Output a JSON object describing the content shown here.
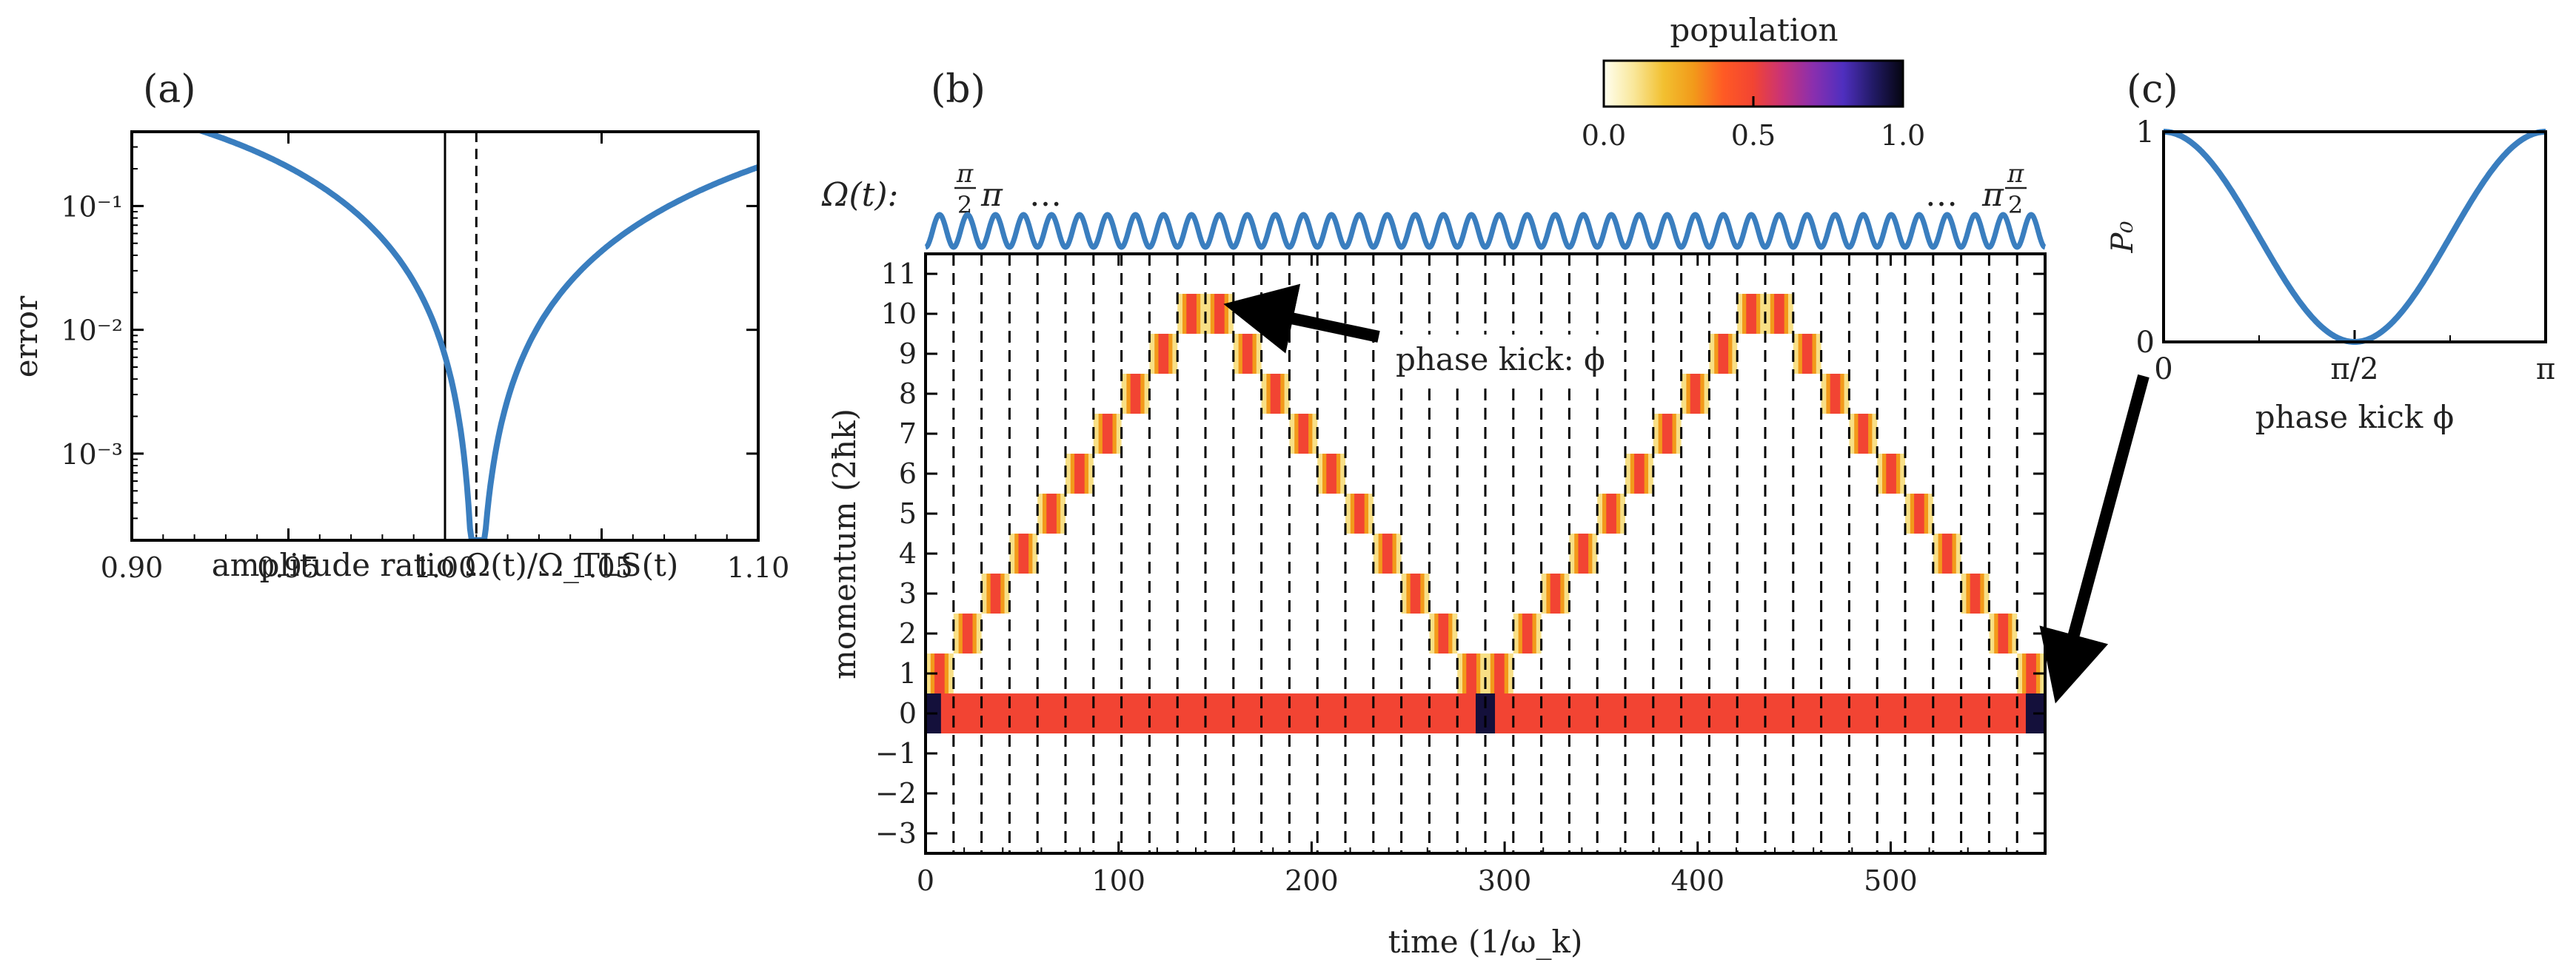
{
  "colors": {
    "curve": "#3a7ebf",
    "axis": "#000000",
    "cmap": [
      "#fffff0",
      "#f9e79a",
      "#f2c030",
      "#f29a1a",
      "#ff5a24",
      "#f24433",
      "#c7327a",
      "#8a2fae",
      "#4f2fbf",
      "#221a66",
      "#050510"
    ]
  },
  "panel_a": {
    "label": "(a)",
    "chart_data": {
      "type": "line",
      "xlabel": "amplitude ratio Ω(t)/Ω_TLS(t)",
      "ylabel": "error",
      "xlim": [
        0.9,
        1.1
      ],
      "ylim_log10": [
        -3.7,
        -0.4
      ],
      "xticks": [
        0.9,
        0.95,
        1.0,
        1.05,
        1.1
      ],
      "xtick_labels": [
        "0.90",
        "0.95",
        "1.00",
        "1.05",
        "1.10"
      ],
      "yticks_log10": [
        -1,
        -2,
        -3
      ],
      "ytick_labels": [
        "10⁻¹",
        "10⁻²",
        "10⁻³"
      ],
      "vline_solid": 1.0,
      "vline_dashed": 1.01,
      "curve": {
        "x0": 1.01,
        "c_left": 0.2,
        "c_right": 0.3,
        "min_error": 0.0002
      }
    }
  },
  "panel_b": {
    "label": "(b)",
    "omega_label": "Ω(t):",
    "omega_left_frac_num": "π",
    "omega_left_frac_den": "2",
    "omega_left_pi": "π",
    "omega_right_pi": "π",
    "omega_right_frac_num": "π",
    "omega_right_frac_den": "2",
    "ellipsis": "…",
    "annotation": "phase kick: ϕ",
    "colorbar": {
      "title": "population",
      "ticks": [
        "0.0",
        "0.5",
        "1.0"
      ]
    },
    "chart_data": {
      "type": "heatmap",
      "xlabel": "time (1/ω_k)",
      "ylabel": "momentum (2ħk)",
      "xlim": [
        0,
        580
      ],
      "ylim": [
        -3.5,
        11.5
      ],
      "xticks": [
        0,
        100,
        200,
        300,
        400,
        500
      ],
      "xtick_labels": [
        "0",
        "100",
        "200",
        "300",
        "400",
        "500"
      ],
      "yticks": [
        11,
        10,
        9,
        8,
        7,
        6,
        5,
        4,
        3,
        2,
        1,
        0,
        -1,
        -2,
        -3
      ],
      "ytick_labels": [
        "11",
        "10",
        "9",
        "8",
        "7",
        "6",
        "5",
        "4",
        "3",
        "2",
        "1",
        "0",
        "−1",
        "−2",
        "−3"
      ],
      "pulse_period": 14.5,
      "n_pulses": 40,
      "cycles": [
        {
          "t_start": 0,
          "peak_momentum": 10
        },
        {
          "t_start": 290,
          "peak_momentum": 10
        }
      ],
      "ground_population": 0.5,
      "excited_population": 0.5
    }
  },
  "panel_c": {
    "label": "(c)",
    "chart_data": {
      "type": "line",
      "function": "P0 = cos^2(phi)",
      "xlabel": "phase kick ϕ",
      "ylabel": "P₀",
      "xlim": [
        0,
        3.14159
      ],
      "ylim": [
        0,
        1
      ],
      "xtick_labels": [
        "0",
        "π/2",
        "π"
      ],
      "ytick_labels": [
        "0",
        "1"
      ]
    }
  }
}
